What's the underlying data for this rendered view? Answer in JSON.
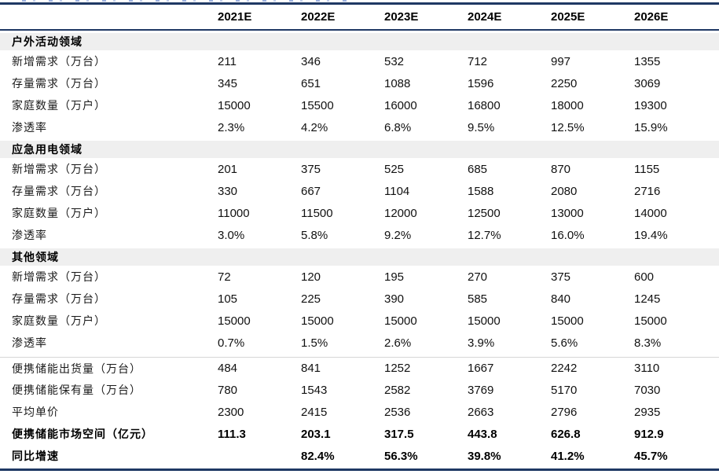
{
  "colors": {
    "accent_navy": "#1F3864",
    "section_bg": "#EFEFEF",
    "divider_gray": "#D6D6D6",
    "remnant_blue": "#4A6FC4"
  },
  "chart_data": {
    "type": "table",
    "columns": [
      "2021E",
      "2022E",
      "2023E",
      "2024E",
      "2025E",
      "2026E"
    ],
    "sections": [
      {
        "title": "户外活动领域",
        "rows": [
          {
            "label": "新增需求（万台）",
            "values": [
              "211",
              "346",
              "532",
              "712",
              "997",
              "1355"
            ]
          },
          {
            "label": "存量需求（万台）",
            "values": [
              "345",
              "651",
              "1088",
              "1596",
              "2250",
              "3069"
            ]
          },
          {
            "label": "家庭数量（万户）",
            "values": [
              "15000",
              "15500",
              "16000",
              "16800",
              "18000",
              "19300"
            ]
          },
          {
            "label": "渗透率",
            "values": [
              "2.3%",
              "4.2%",
              "6.8%",
              "9.5%",
              "12.5%",
              "15.9%"
            ]
          }
        ]
      },
      {
        "title": "应急用电领域",
        "rows": [
          {
            "label": "新增需求（万台）",
            "values": [
              "201",
              "375",
              "525",
              "685",
              "870",
              "1155"
            ]
          },
          {
            "label": "存量需求（万台）",
            "values": [
              "330",
              "667",
              "1104",
              "1588",
              "2080",
              "2716"
            ]
          },
          {
            "label": "家庭数量（万户）",
            "values": [
              "11000",
              "11500",
              "12000",
              "12500",
              "13000",
              "14000"
            ]
          },
          {
            "label": "渗透率",
            "values": [
              "3.0%",
              "5.8%",
              "9.2%",
              "12.7%",
              "16.0%",
              "19.4%"
            ]
          }
        ]
      },
      {
        "title": "其他领域",
        "rows": [
          {
            "label": "新增需求（万台）",
            "values": [
              "72",
              "120",
              "195",
              "270",
              "375",
              "600"
            ]
          },
          {
            "label": "存量需求（万台）",
            "values": [
              "105",
              "225",
              "390",
              "585",
              "840",
              "1245"
            ]
          },
          {
            "label": "家庭数量（万户）",
            "values": [
              "15000",
              "15000",
              "15000",
              "15000",
              "15000",
              "15000"
            ]
          },
          {
            "label": "渗透率",
            "values": [
              "0.7%",
              "1.5%",
              "2.6%",
              "3.9%",
              "5.6%",
              "8.3%"
            ]
          }
        ]
      }
    ],
    "summary_rows": [
      {
        "label": "便携储能出货量（万台）",
        "values": [
          "484",
          "841",
          "1252",
          "1667",
          "2242",
          "3110"
        ],
        "bold": false
      },
      {
        "label": "便携储能保有量（万台）",
        "values": [
          "780",
          "1543",
          "2582",
          "3769",
          "5170",
          "7030"
        ],
        "bold": false
      },
      {
        "label": "平均单价",
        "values": [
          "2300",
          "2415",
          "2536",
          "2663",
          "2796",
          "2935"
        ],
        "bold": false
      },
      {
        "label": "便携储能市场空间（亿元）",
        "values": [
          "111.3",
          "203.1",
          "317.5",
          "443.8",
          "626.8",
          "912.9"
        ],
        "bold": true
      },
      {
        "label": "同比增速",
        "values": [
          "",
          "82.4%",
          "56.3%",
          "39.8%",
          "41.2%",
          "45.7%"
        ],
        "bold": true
      }
    ]
  }
}
